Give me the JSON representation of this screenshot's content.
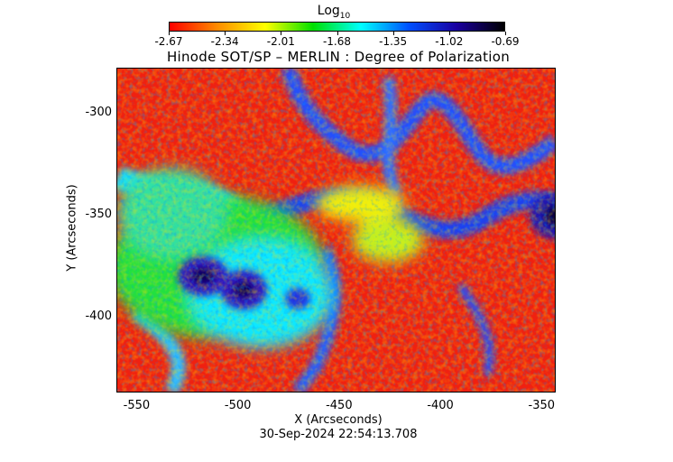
{
  "colorbar": {
    "title_main": "Log",
    "title_sub": "10",
    "labels": [
      "-2.67",
      "-2.34",
      "-2.01",
      "-1.68",
      "-1.35",
      "-1.02",
      "-0.69"
    ],
    "colors": [
      "#ff0000",
      "#ff8c00",
      "#ffff00",
      "#00e000",
      "#00ffff",
      "#0050ff",
      "#1a00a0",
      "#000000"
    ]
  },
  "plot": {
    "title": "Hinode SOT/SP – MERLIN : Degree of Polarization",
    "xlabel": "X (Arcseconds)",
    "ylabel": "Y (Arcseconds)",
    "xticks": [
      "-550",
      "-500",
      "-450",
      "-400",
      "-350"
    ],
    "yticks": [
      "-300",
      "-350",
      "-400"
    ],
    "xlim": [
      -560,
      -343
    ],
    "ylim": [
      -437,
      -278
    ]
  },
  "timestamp": "30-Sep-2024 22:54:13.708"
}
